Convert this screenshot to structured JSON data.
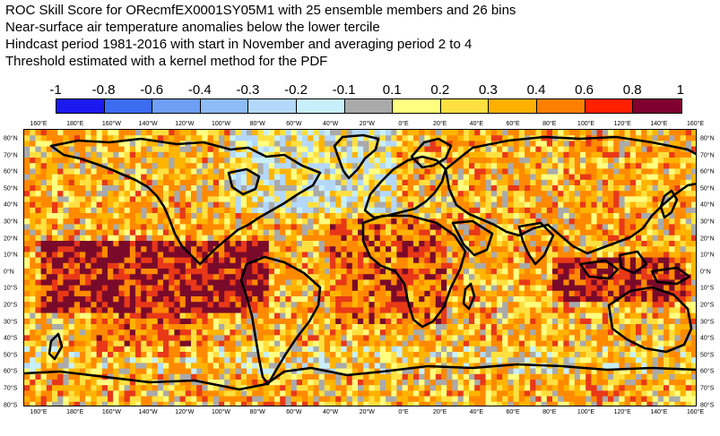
{
  "title": {
    "lines": [
      "ROC Skill Score for ORecmfEX0001SY05M1 with 25 ensemble members and 26 bins",
      "Near-surface air temperature anomalies below the lower tercile",
      "Hindcast period 1981-2016 with start in November and averaging period  2 to  4",
      "Threshold estimated with a kernel method for the PDF"
    ]
  },
  "colorbar": {
    "labels": [
      "-1",
      "-0.8",
      "-0.6",
      "-0.4",
      "-0.3",
      "-0.2",
      "-0.1",
      "0.1",
      "0.2",
      "0.3",
      "0.4",
      "0.6",
      "0.8",
      "1"
    ],
    "colors": [
      "#1a1af0",
      "#3c6cf2",
      "#6f9ef5",
      "#8fbbf6",
      "#b4d8fa",
      "#c8f0fa",
      "#aaaaaa",
      "#ffff80",
      "#ffe040",
      "#ffb000",
      "#ff8000",
      "#ff2000",
      "#800030"
    ]
  },
  "axes": {
    "lon_labels": [
      "160°E",
      "180°E",
      "160°W",
      "140°W",
      "120°W",
      "100°W",
      "80°W",
      "60°W",
      "40°W",
      "20°W",
      "0°E",
      "20°E",
      "40°E",
      "60°E",
      "80°E",
      "100°E",
      "120°E",
      "140°E",
      "160°E"
    ],
    "lat_labels": [
      "80°N",
      "70°N",
      "60°N",
      "50°N",
      "40°N",
      "30°N",
      "20°N",
      "10°N",
      "0°N",
      "10°S",
      "20°S",
      "30°S",
      "40°S",
      "50°S",
      "60°S",
      "70°S",
      "80°S"
    ]
  },
  "map": {
    "coastline_color": "#000000",
    "colors": {
      "dark": "#7a0a2a",
      "red": "#e83818",
      "orange": "#ff8a00",
      "amber": "#ffb400",
      "yellow": "#ffe040",
      "pale": "#ffff80",
      "gray": "#aaaaaa",
      "cyan": "#c8f0fa",
      "lightblue": "#b4d8fa"
    }
  }
}
